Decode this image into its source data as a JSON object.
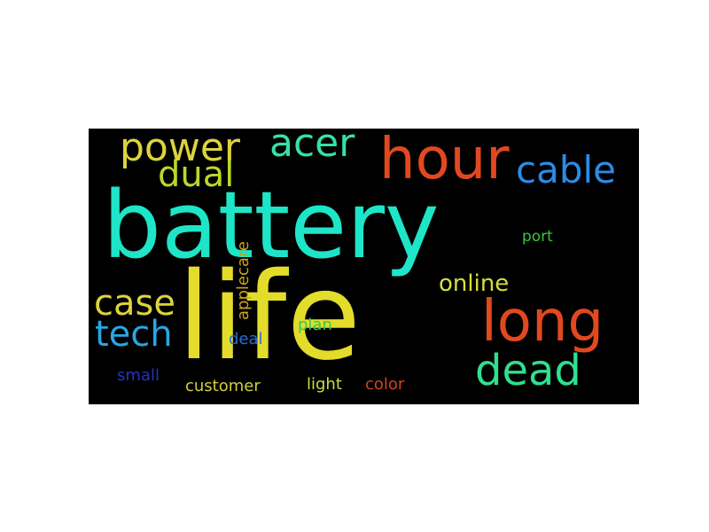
{
  "words": [
    {
      "text": "battery",
      "color": "#1ee5c8"
    },
    {
      "text": "life",
      "color": "#e3dc2b"
    },
    {
      "text": "hour",
      "color": "#e2481f"
    },
    {
      "text": "long",
      "color": "#e2481f"
    },
    {
      "text": "dead",
      "color": "#2fe08f"
    },
    {
      "text": "power",
      "color": "#dcd43c"
    },
    {
      "text": "acer",
      "color": "#33e3a4"
    },
    {
      "text": "cable",
      "color": "#2b8ce6"
    },
    {
      "text": "dual",
      "color": "#bcd72a"
    },
    {
      "text": "case",
      "color": "#dcd43c"
    },
    {
      "text": "tech",
      "color": "#27a6e6"
    },
    {
      "text": "online",
      "color": "#d7df3a"
    },
    {
      "text": "applecare",
      "color": "#c9a21c"
    },
    {
      "text": "port",
      "color": "#37c73b"
    },
    {
      "text": "plan",
      "color": "#2ecb55"
    },
    {
      "text": "deal",
      "color": "#2a6ad6"
    },
    {
      "text": "small",
      "color": "#2233c0"
    },
    {
      "text": "customer",
      "color": "#d2cd3c"
    },
    {
      "text": "light",
      "color": "#c9de3b"
    },
    {
      "text": "color",
      "color": "#d4421f"
    }
  ]
}
